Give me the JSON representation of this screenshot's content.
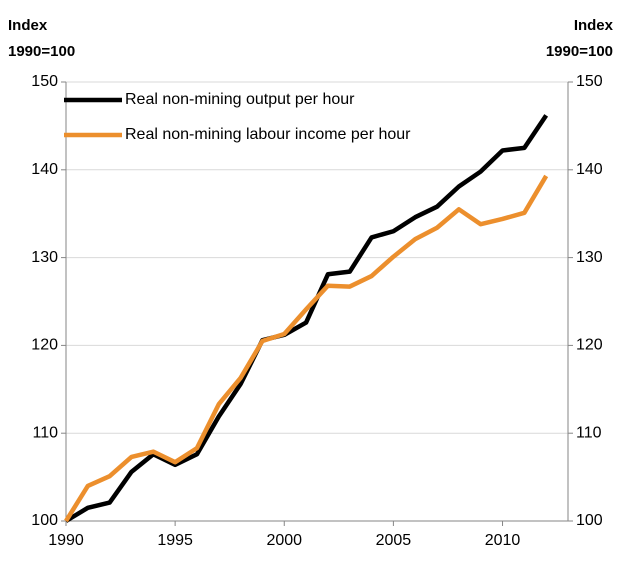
{
  "chart_data": {
    "type": "line",
    "y_label": [
      "Index",
      "1990=100"
    ],
    "y2_label": [
      "Index",
      "1990=100"
    ],
    "x": [
      1990,
      1991,
      1992,
      1993,
      1994,
      1995,
      1996,
      1997,
      1998,
      1999,
      2000,
      2001,
      2002,
      2003,
      2004,
      2005,
      2006,
      2007,
      2008,
      2009,
      2010,
      2011,
      2012
    ],
    "series": [
      {
        "name": "Real non-mining output per hour",
        "color": "#000000",
        "values": [
          100,
          101.5,
          102.1,
          105.6,
          107.6,
          106.4,
          107.6,
          111.9,
          115.6,
          120.6,
          121.2,
          122.6,
          128.1,
          128.4,
          132.3,
          133.0,
          134.6,
          135.8,
          138.1,
          139.8,
          142.2,
          142.5,
          146.2
        ]
      },
      {
        "name": "Real non-mining labour income per hour",
        "color": "#ec8f2d",
        "values": [
          100,
          104.0,
          105.1,
          107.3,
          107.9,
          106.7,
          108.3,
          113.3,
          116.3,
          120.5,
          121.3,
          124.1,
          126.8,
          126.7,
          127.9,
          130.1,
          132.1,
          133.4,
          135.5,
          133.8,
          134.4,
          135.1,
          139.3
        ]
      }
    ],
    "xlim": [
      1990,
      2013
    ],
    "xticks": [
      1990,
      1995,
      2000,
      2005,
      2010
    ],
    "ylim": [
      100,
      150
    ],
    "yticks": [
      100,
      110,
      120,
      130,
      140,
      150
    ],
    "y2lim": [
      100,
      150
    ],
    "y2ticks": [
      100,
      110,
      120,
      130,
      140,
      150
    ],
    "grid": true,
    "legend": "top-left"
  }
}
